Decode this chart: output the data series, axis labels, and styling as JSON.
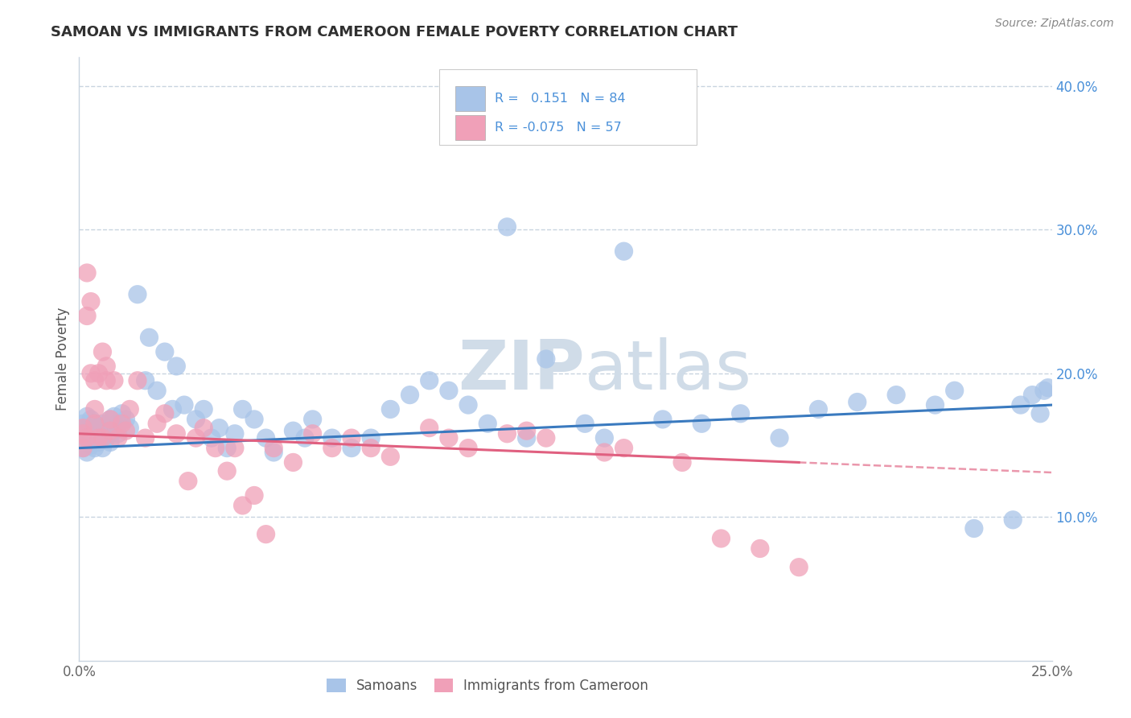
{
  "title": "SAMOAN VS IMMIGRANTS FROM CAMEROON FEMALE POVERTY CORRELATION CHART",
  "source": "Source: ZipAtlas.com",
  "ylabel": "Female Poverty",
  "xlim": [
    0.0,
    0.25
  ],
  "ylim": [
    0.0,
    0.42
  ],
  "r_samoan": 0.151,
  "n_samoan": 84,
  "r_cameroon": -0.075,
  "n_cameroon": 57,
  "blue_color": "#a8c4e8",
  "pink_color": "#f0a0b8",
  "blue_line_color": "#3a7abf",
  "pink_line_color": "#e06080",
  "watermark_color": "#d0dce8",
  "background_color": "#ffffff",
  "grid_color": "#c8d4e0",
  "title_color": "#303030",
  "source_color": "#888888",
  "ylabel_color": "#555555",
  "tick_color": "#666666",
  "right_tick_color": "#4a90d9",
  "legend_text_color": "#333333",
  "legend_rn_color": "#4a90d9",
  "samoan_x": [
    0.001,
    0.001,
    0.001,
    0.002,
    0.002,
    0.002,
    0.002,
    0.003,
    0.003,
    0.003,
    0.003,
    0.004,
    0.004,
    0.004,
    0.005,
    0.005,
    0.005,
    0.006,
    0.006,
    0.006,
    0.007,
    0.007,
    0.008,
    0.008,
    0.008,
    0.009,
    0.009,
    0.01,
    0.01,
    0.011,
    0.012,
    0.013,
    0.015,
    0.017,
    0.018,
    0.02,
    0.022,
    0.024,
    0.025,
    0.027,
    0.03,
    0.032,
    0.034,
    0.036,
    0.038,
    0.04,
    0.042,
    0.045,
    0.048,
    0.05,
    0.055,
    0.058,
    0.06,
    0.065,
    0.07,
    0.075,
    0.08,
    0.085,
    0.09,
    0.095,
    0.1,
    0.105,
    0.11,
    0.115,
    0.12,
    0.13,
    0.135,
    0.14,
    0.15,
    0.16,
    0.17,
    0.18,
    0.19,
    0.2,
    0.21,
    0.22,
    0.225,
    0.23,
    0.24,
    0.242,
    0.245,
    0.247,
    0.248,
    0.249
  ],
  "samoan_y": [
    0.165,
    0.158,
    0.148,
    0.162,
    0.155,
    0.145,
    0.17,
    0.16,
    0.15,
    0.168,
    0.155,
    0.158,
    0.148,
    0.165,
    0.152,
    0.162,
    0.158,
    0.155,
    0.165,
    0.148,
    0.16,
    0.155,
    0.168,
    0.152,
    0.158,
    0.16,
    0.17,
    0.165,
    0.158,
    0.172,
    0.168,
    0.162,
    0.255,
    0.195,
    0.225,
    0.188,
    0.215,
    0.175,
    0.205,
    0.178,
    0.168,
    0.175,
    0.155,
    0.162,
    0.148,
    0.158,
    0.175,
    0.168,
    0.155,
    0.145,
    0.16,
    0.155,
    0.168,
    0.155,
    0.148,
    0.155,
    0.175,
    0.185,
    0.195,
    0.188,
    0.178,
    0.165,
    0.302,
    0.155,
    0.21,
    0.165,
    0.155,
    0.285,
    0.168,
    0.165,
    0.172,
    0.155,
    0.175,
    0.18,
    0.185,
    0.178,
    0.188,
    0.092,
    0.098,
    0.178,
    0.185,
    0.172,
    0.188,
    0.19
  ],
  "cameroon_x": [
    0.001,
    0.001,
    0.001,
    0.002,
    0.002,
    0.002,
    0.003,
    0.003,
    0.004,
    0.004,
    0.004,
    0.005,
    0.005,
    0.006,
    0.006,
    0.007,
    0.007,
    0.008,
    0.008,
    0.009,
    0.01,
    0.011,
    0.012,
    0.013,
    0.015,
    0.017,
    0.02,
    0.022,
    0.025,
    0.028,
    0.03,
    0.032,
    0.035,
    0.038,
    0.04,
    0.042,
    0.045,
    0.048,
    0.05,
    0.055,
    0.06,
    0.065,
    0.07,
    0.075,
    0.08,
    0.09,
    0.095,
    0.1,
    0.11,
    0.115,
    0.12,
    0.135,
    0.14,
    0.155,
    0.165,
    0.175,
    0.185
  ],
  "cameroon_y": [
    0.162,
    0.158,
    0.148,
    0.27,
    0.155,
    0.24,
    0.2,
    0.25,
    0.165,
    0.175,
    0.195,
    0.2,
    0.155,
    0.215,
    0.155,
    0.205,
    0.195,
    0.16,
    0.168,
    0.195,
    0.155,
    0.165,
    0.16,
    0.175,
    0.195,
    0.155,
    0.165,
    0.172,
    0.158,
    0.125,
    0.155,
    0.162,
    0.148,
    0.132,
    0.148,
    0.108,
    0.115,
    0.088,
    0.148,
    0.138,
    0.158,
    0.148,
    0.155,
    0.148,
    0.142,
    0.162,
    0.155,
    0.148,
    0.158,
    0.16,
    0.155,
    0.145,
    0.148,
    0.138,
    0.085,
    0.078,
    0.065
  ],
  "trend_samoan_x0": 0.0,
  "trend_samoan_x1": 0.25,
  "trend_samoan_y0": 0.148,
  "trend_samoan_y1": 0.178,
  "trend_cameroon_x0": 0.0,
  "trend_cameroon_x1": 0.185,
  "trend_cameroon_y0": 0.158,
  "trend_cameroon_y1": 0.138,
  "trend_cameroon_dash_x0": 0.185,
  "trend_cameroon_dash_x1": 0.25
}
